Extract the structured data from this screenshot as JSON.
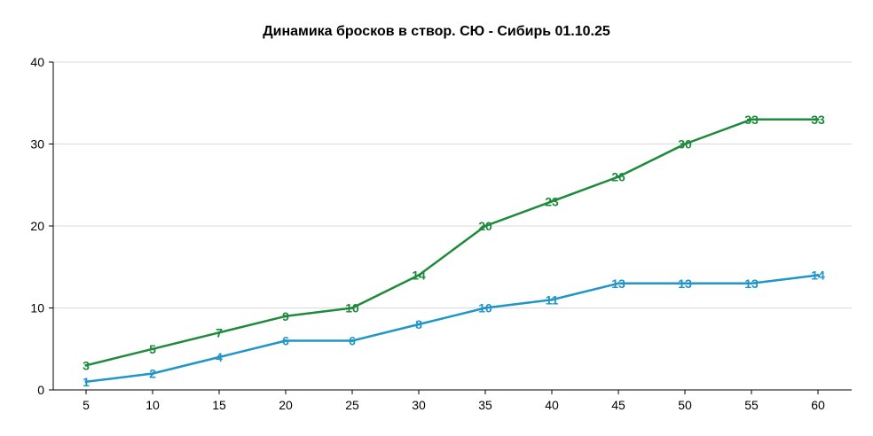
{
  "chart_data": {
    "type": "line",
    "title": "Динамика бросков в створ. СЮ - Сибирь 01.10.25",
    "xlabel": "",
    "ylabel": "",
    "x": [
      5,
      10,
      15,
      20,
      25,
      30,
      35,
      40,
      45,
      50,
      55,
      60
    ],
    "xlim": [
      5,
      60
    ],
    "ylim": [
      0,
      40
    ],
    "yticks": [
      0,
      10,
      20,
      30,
      40
    ],
    "grid": true,
    "legend": "none",
    "series": [
      {
        "color": "#1e8a3c",
        "values": [
          3,
          5,
          7,
          9,
          10,
          14,
          20,
          23,
          26,
          30,
          33,
          33
        ]
      },
      {
        "color": "#1f95c8",
        "values": [
          1,
          2,
          4,
          6,
          6,
          8,
          10,
          11,
          13,
          13,
          13,
          14
        ]
      }
    ]
  }
}
